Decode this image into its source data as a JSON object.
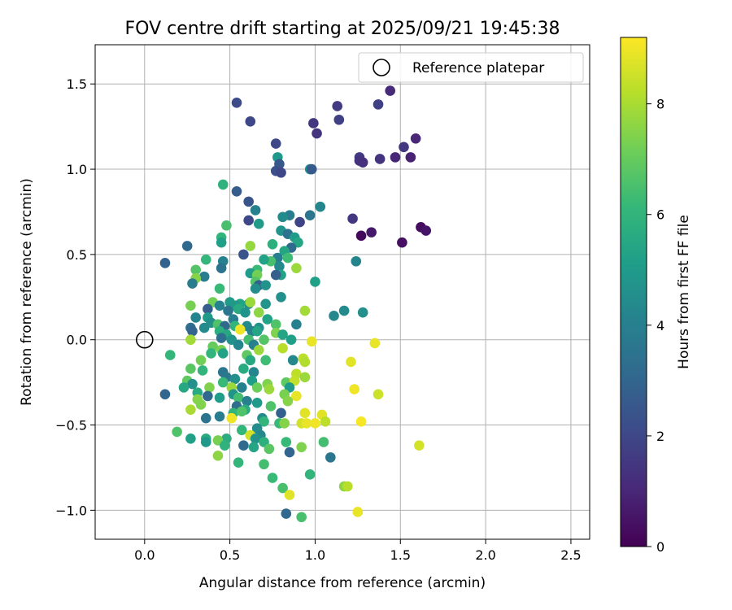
{
  "chart_data": {
    "type": "scatter",
    "title": "FOV centre drift starting at 2025/09/21 19:45:38",
    "xlabel": "Angular distance from reference (arcmin)",
    "ylabel": "Rotation from reference (arcmin)",
    "xlim": [
      -0.29,
      2.61
    ],
    "ylim": [
      -1.17,
      1.73
    ],
    "xticks": [
      "0.0",
      "0.5",
      "1.0",
      "1.5",
      "2.0",
      "2.5"
    ],
    "xtick_values": [
      0.0,
      0.5,
      1.0,
      1.5,
      2.0,
      2.5
    ],
    "yticks": [
      "−1.0",
      "−0.5",
      "0.0",
      "0.5",
      "1.0",
      "1.5"
    ],
    "ytick_values": [
      -1.0,
      -0.5,
      0.0,
      0.5,
      1.0,
      1.5
    ],
    "grid": true,
    "legend": {
      "position": "top-right",
      "label": "Reference platepar"
    },
    "reference_point": {
      "x": 0.0,
      "y": 0.0
    },
    "colorbar": {
      "label": "Hours from first FF file",
      "range": [
        0,
        9.2
      ],
      "ticks": [
        "0",
        "2",
        "4",
        "6",
        "8"
      ],
      "tick_values": [
        0,
        2,
        4,
        6,
        8
      ],
      "colormap": [
        "#440154",
        "#482878",
        "#3e4989",
        "#31688e",
        "#26828e",
        "#1f9e89",
        "#35b779",
        "#6ece58",
        "#b5de2b",
        "#fde725"
      ]
    },
    "points": [
      {
        "x": 1.44,
        "y": 1.46,
        "h": 1.1
      },
      {
        "x": 1.13,
        "y": 1.37,
        "h": 1.6
      },
      {
        "x": 1.37,
        "y": 1.38,
        "h": 1.8
      },
      {
        "x": 0.54,
        "y": 1.39,
        "h": 2.1
      },
      {
        "x": 0.62,
        "y": 1.28,
        "h": 2.0
      },
      {
        "x": 1.14,
        "y": 1.29,
        "h": 1.8
      },
      {
        "x": 0.99,
        "y": 1.27,
        "h": 1.5
      },
      {
        "x": 1.01,
        "y": 1.21,
        "h": 1.4
      },
      {
        "x": 1.59,
        "y": 1.18,
        "h": 1.0
      },
      {
        "x": 0.77,
        "y": 1.15,
        "h": 2.0
      },
      {
        "x": 1.52,
        "y": 1.13,
        "h": 1.5
      },
      {
        "x": 1.47,
        "y": 1.07,
        "h": 1.0
      },
      {
        "x": 1.56,
        "y": 1.07,
        "h": 0.9
      },
      {
        "x": 1.26,
        "y": 1.07,
        "h": 1.6
      },
      {
        "x": 0.78,
        "y": 1.07,
        "h": 4.9
      },
      {
        "x": 1.38,
        "y": 1.06,
        "h": 1.4
      },
      {
        "x": 1.26,
        "y": 1.05,
        "h": 1.4
      },
      {
        "x": 1.28,
        "y": 1.04,
        "h": 1.3
      },
      {
        "x": 0.79,
        "y": 1.03,
        "h": 2.5
      },
      {
        "x": 0.77,
        "y": 0.99,
        "h": 2.3
      },
      {
        "x": 0.8,
        "y": 0.98,
        "h": 2.0
      },
      {
        "x": 0.97,
        "y": 1.0,
        "h": 4.6
      },
      {
        "x": 0.98,
        "y": 1.0,
        "h": 2.6
      },
      {
        "x": 0.46,
        "y": 0.91,
        "h": 5.9
      },
      {
        "x": 0.54,
        "y": 0.87,
        "h": 2.7
      },
      {
        "x": 0.61,
        "y": 0.81,
        "h": 2.4
      },
      {
        "x": 1.03,
        "y": 0.78,
        "h": 4.2
      },
      {
        "x": 0.65,
        "y": 0.76,
        "h": 4.0
      },
      {
        "x": 1.22,
        "y": 0.71,
        "h": 1.5
      },
      {
        "x": 0.85,
        "y": 0.73,
        "h": 3.9
      },
      {
        "x": 0.97,
        "y": 0.73,
        "h": 3.6
      },
      {
        "x": 0.81,
        "y": 0.72,
        "h": 4.4
      },
      {
        "x": 0.61,
        "y": 0.7,
        "h": 2.0
      },
      {
        "x": 0.91,
        "y": 0.69,
        "h": 1.9
      },
      {
        "x": 0.67,
        "y": 0.68,
        "h": 5.0
      },
      {
        "x": 0.48,
        "y": 0.67,
        "h": 6.5
      },
      {
        "x": 1.62,
        "y": 0.66,
        "h": 0.3
      },
      {
        "x": 1.65,
        "y": 0.64,
        "h": 0.5
      },
      {
        "x": 0.8,
        "y": 0.64,
        "h": 4.8
      },
      {
        "x": 1.33,
        "y": 0.63,
        "h": 0.6
      },
      {
        "x": 1.27,
        "y": 0.61,
        "h": 0.2
      },
      {
        "x": 0.84,
        "y": 0.62,
        "h": 3.5
      },
      {
        "x": 0.88,
        "y": 0.6,
        "h": 5.0
      },
      {
        "x": 0.45,
        "y": 0.6,
        "h": 6.0
      },
      {
        "x": 0.45,
        "y": 0.57,
        "h": 5.2
      },
      {
        "x": 0.9,
        "y": 0.57,
        "h": 5.4
      },
      {
        "x": 0.75,
        "y": 0.56,
        "h": 5.8
      },
      {
        "x": 0.62,
        "y": 0.55,
        "h": 7.7
      },
      {
        "x": 0.25,
        "y": 0.55,
        "h": 3.1
      },
      {
        "x": 0.86,
        "y": 0.54,
        "h": 3.2
      },
      {
        "x": 0.82,
        "y": 0.52,
        "h": 5.4
      },
      {
        "x": 0.58,
        "y": 0.5,
        "h": 2.4
      },
      {
        "x": 1.51,
        "y": 0.57,
        "h": 0.4
      },
      {
        "x": 0.78,
        "y": 0.48,
        "h": 3.9
      },
      {
        "x": 0.84,
        "y": 0.48,
        "h": 6.3
      },
      {
        "x": 0.74,
        "y": 0.46,
        "h": 6.5
      },
      {
        "x": 0.7,
        "y": 0.47,
        "h": 5.3
      },
      {
        "x": 0.12,
        "y": 0.45,
        "h": 2.9
      },
      {
        "x": 0.36,
        "y": 0.47,
        "h": 6.1
      },
      {
        "x": 0.46,
        "y": 0.46,
        "h": 4.1
      },
      {
        "x": 0.79,
        "y": 0.43,
        "h": 4.3
      },
      {
        "x": 1.24,
        "y": 0.46,
        "h": 4.2
      },
      {
        "x": 0.45,
        "y": 0.42,
        "h": 3.5
      },
      {
        "x": 0.3,
        "y": 0.41,
        "h": 6.7
      },
      {
        "x": 0.66,
        "y": 0.41,
        "h": 6.2
      },
      {
        "x": 0.89,
        "y": 0.42,
        "h": 7.8
      },
      {
        "x": 0.62,
        "y": 0.39,
        "h": 5.0
      },
      {
        "x": 0.66,
        "y": 0.38,
        "h": 7.2
      },
      {
        "x": 0.8,
        "y": 0.38,
        "h": 5.3
      },
      {
        "x": 0.77,
        "y": 0.38,
        "h": 2.8
      },
      {
        "x": 0.35,
        "y": 0.37,
        "h": 3.9
      },
      {
        "x": 0.3,
        "y": 0.36,
        "h": 7.5
      },
      {
        "x": 0.28,
        "y": 0.33,
        "h": 3.8
      },
      {
        "x": 0.65,
        "y": 0.34,
        "h": 6.7
      },
      {
        "x": 0.67,
        "y": 0.32,
        "h": 2.8
      },
      {
        "x": 0.71,
        "y": 0.32,
        "h": 4.7
      },
      {
        "x": 1.0,
        "y": 0.34,
        "h": 5.2
      },
      {
        "x": 0.44,
        "y": 0.3,
        "h": 6.2
      },
      {
        "x": 0.65,
        "y": 0.3,
        "h": 4.5
      },
      {
        "x": 0.8,
        "y": 0.25,
        "h": 4.6
      },
      {
        "x": 0.61,
        "y": 0.21,
        "h": 4.3
      },
      {
        "x": 0.56,
        "y": 0.21,
        "h": 5.3
      },
      {
        "x": 0.5,
        "y": 0.22,
        "h": 5.0
      },
      {
        "x": 0.53,
        "y": 0.2,
        "h": 4.9
      },
      {
        "x": 0.27,
        "y": 0.2,
        "h": 7.3
      },
      {
        "x": 0.4,
        "y": 0.22,
        "h": 7.2
      },
      {
        "x": 0.62,
        "y": 0.22,
        "h": 7.8
      },
      {
        "x": 0.71,
        "y": 0.21,
        "h": 4.8
      },
      {
        "x": 0.44,
        "y": 0.2,
        "h": 4.1
      },
      {
        "x": 0.37,
        "y": 0.18,
        "h": 2.7
      },
      {
        "x": 0.55,
        "y": 0.18,
        "h": 5.6
      },
      {
        "x": 0.49,
        "y": 0.17,
        "h": 3.6
      },
      {
        "x": 0.59,
        "y": 0.16,
        "h": 4.7
      },
      {
        "x": 0.67,
        "y": 0.16,
        "h": 7.6
      },
      {
        "x": 0.94,
        "y": 0.17,
        "h": 7.9
      },
      {
        "x": 1.17,
        "y": 0.17,
        "h": 4.4
      },
      {
        "x": 1.28,
        "y": 0.16,
        "h": 4.6
      },
      {
        "x": 1.11,
        "y": 0.14,
        "h": 4.3
      },
      {
        "x": 0.3,
        "y": 0.13,
        "h": 4.2
      },
      {
        "x": 0.52,
        "y": 0.12,
        "h": 3.9
      },
      {
        "x": 0.37,
        "y": 0.13,
        "h": 5.0
      },
      {
        "x": 0.72,
        "y": 0.12,
        "h": 5.3
      },
      {
        "x": 0.39,
        "y": 0.1,
        "h": 4.6
      },
      {
        "x": 0.43,
        "y": 0.09,
        "h": 6.6
      },
      {
        "x": 0.47,
        "y": 0.08,
        "h": 3.2
      },
      {
        "x": 0.53,
        "y": 0.08,
        "h": 6.0
      },
      {
        "x": 0.6,
        "y": 0.08,
        "h": 4.4
      },
      {
        "x": 0.67,
        "y": 0.07,
        "h": 4.7
      },
      {
        "x": 0.77,
        "y": 0.09,
        "h": 6.6
      },
      {
        "x": 0.89,
        "y": 0.09,
        "h": 4.0
      },
      {
        "x": 0.27,
        "y": 0.07,
        "h": 3.3
      },
      {
        "x": 0.35,
        "y": 0.07,
        "h": 4.4
      },
      {
        "x": 0.28,
        "y": 0.05,
        "h": 3.0
      },
      {
        "x": 0.44,
        "y": 0.05,
        "h": 5.8
      },
      {
        "x": 0.56,
        "y": 0.06,
        "h": 9.0
      },
      {
        "x": 0.63,
        "y": 0.05,
        "h": 4.1
      },
      {
        "x": 0.66,
        "y": 0.05,
        "h": 5.4
      },
      {
        "x": 0.48,
        "y": 0.03,
        "h": 5.5
      },
      {
        "x": 0.77,
        "y": 0.04,
        "h": 7.4
      },
      {
        "x": 0.81,
        "y": 0.03,
        "h": 5.4
      },
      {
        "x": 0.45,
        "y": 0.01,
        "h": 3.3
      },
      {
        "x": 0.51,
        "y": 0.0,
        "h": 4.7
      },
      {
        "x": 0.61,
        "y": 0.0,
        "h": 6.4
      },
      {
        "x": 0.27,
        "y": 0.0,
        "h": 7.9
      },
      {
        "x": 0.7,
        "y": 0.0,
        "h": 6.7
      },
      {
        "x": 0.86,
        "y": 0.0,
        "h": 5.2
      },
      {
        "x": 0.98,
        "y": -0.01,
        "h": 8.9
      },
      {
        "x": 0.4,
        "y": -0.04,
        "h": 7.0
      },
      {
        "x": 0.55,
        "y": -0.03,
        "h": 4.2
      },
      {
        "x": 0.64,
        "y": -0.03,
        "h": 4.0
      },
      {
        "x": 0.45,
        "y": -0.06,
        "h": 7.3
      },
      {
        "x": 0.67,
        "y": -0.06,
        "h": 7.8
      },
      {
        "x": 0.81,
        "y": -0.05,
        "h": 8.2
      },
      {
        "x": 0.39,
        "y": -0.08,
        "h": 6.0
      },
      {
        "x": 0.46,
        "y": -0.08,
        "h": 5.3
      },
      {
        "x": 0.6,
        "y": -0.09,
        "h": 6.9
      },
      {
        "x": 0.15,
        "y": -0.09,
        "h": 6.1
      },
      {
        "x": 0.62,
        "y": -0.12,
        "h": 5.5
      },
      {
        "x": 0.71,
        "y": -0.12,
        "h": 6.3
      },
      {
        "x": 0.33,
        "y": -0.12,
        "h": 7.2
      },
      {
        "x": 0.87,
        "y": -0.12,
        "h": 4.3
      },
      {
        "x": 0.93,
        "y": -0.11,
        "h": 8.3
      },
      {
        "x": 0.94,
        "y": -0.13,
        "h": 8.1
      },
      {
        "x": 1.21,
        "y": -0.13,
        "h": 8.8
      },
      {
        "x": 1.35,
        "y": -0.02,
        "h": 8.9
      },
      {
        "x": 0.27,
        "y": -0.17,
        "h": 6.8
      },
      {
        "x": 0.34,
        "y": -0.18,
        "h": 6.0
      },
      {
        "x": 0.46,
        "y": -0.19,
        "h": 3.6
      },
      {
        "x": 0.58,
        "y": -0.17,
        "h": 5.6
      },
      {
        "x": 0.64,
        "y": -0.19,
        "h": 4.2
      },
      {
        "x": 0.48,
        "y": -0.22,
        "h": 3.7
      },
      {
        "x": 0.53,
        "y": -0.23,
        "h": 4.6
      },
      {
        "x": 0.89,
        "y": -0.2,
        "h": 8.3
      },
      {
        "x": 0.94,
        "y": -0.22,
        "h": 7.8
      },
      {
        "x": 0.63,
        "y": -0.24,
        "h": 5.1
      },
      {
        "x": 0.25,
        "y": -0.24,
        "h": 6.9
      },
      {
        "x": 0.46,
        "y": -0.25,
        "h": 6.2
      },
      {
        "x": 0.83,
        "y": -0.25,
        "h": 6.9
      },
      {
        "x": 0.88,
        "y": -0.24,
        "h": 8.4
      },
      {
        "x": 0.28,
        "y": -0.26,
        "h": 4.6
      },
      {
        "x": 0.51,
        "y": -0.28,
        "h": 7.8
      },
      {
        "x": 0.72,
        "y": -0.26,
        "h": 7.4
      },
      {
        "x": 0.57,
        "y": -0.28,
        "h": 4.0
      },
      {
        "x": 0.23,
        "y": -0.28,
        "h": 5.5
      },
      {
        "x": 0.38,
        "y": -0.28,
        "h": 7.4
      },
      {
        "x": 0.66,
        "y": -0.28,
        "h": 7.1
      },
      {
        "x": 0.85,
        "y": -0.28,
        "h": 5.0
      },
      {
        "x": 1.23,
        "y": -0.29,
        "h": 9.0
      },
      {
        "x": 0.31,
        "y": -0.31,
        "h": 5.6
      },
      {
        "x": 0.73,
        "y": -0.29,
        "h": 7.8
      },
      {
        "x": 0.12,
        "y": -0.32,
        "h": 3.0
      },
      {
        "x": 0.52,
        "y": -0.32,
        "h": 4.8
      },
      {
        "x": 0.82,
        "y": -0.32,
        "h": 7.3
      },
      {
        "x": 0.89,
        "y": -0.33,
        "h": 8.9
      },
      {
        "x": 0.37,
        "y": -0.33,
        "h": 3.1
      },
      {
        "x": 0.44,
        "y": -0.34,
        "h": 5.1
      },
      {
        "x": 0.55,
        "y": -0.34,
        "h": 6.4
      },
      {
        "x": 0.31,
        "y": -0.35,
        "h": 7.5
      },
      {
        "x": 1.37,
        "y": -0.32,
        "h": 8.5
      },
      {
        "x": 0.6,
        "y": -0.36,
        "h": 4.0
      },
      {
        "x": 0.66,
        "y": -0.37,
        "h": 5.0
      },
      {
        "x": 0.84,
        "y": -0.36,
        "h": 7.5
      },
      {
        "x": 0.33,
        "y": -0.38,
        "h": 7.4
      },
      {
        "x": 0.74,
        "y": -0.39,
        "h": 6.6
      },
      {
        "x": 0.54,
        "y": -0.39,
        "h": 3.3
      },
      {
        "x": 0.59,
        "y": -0.41,
        "h": 5.6
      },
      {
        "x": 0.27,
        "y": -0.41,
        "h": 8.0
      },
      {
        "x": 0.52,
        "y": -0.43,
        "h": 6.0
      },
      {
        "x": 0.57,
        "y": -0.42,
        "h": 6.6
      },
      {
        "x": 0.8,
        "y": -0.43,
        "h": 2.8
      },
      {
        "x": 0.94,
        "y": -0.43,
        "h": 8.8
      },
      {
        "x": 0.36,
        "y": -0.46,
        "h": 3.5
      },
      {
        "x": 0.44,
        "y": -0.45,
        "h": 3.8
      },
      {
        "x": 0.51,
        "y": -0.46,
        "h": 9.0
      },
      {
        "x": 0.69,
        "y": -0.46,
        "h": 4.4
      },
      {
        "x": 0.7,
        "y": -0.48,
        "h": 6.0
      },
      {
        "x": 0.79,
        "y": -0.49,
        "h": 6.2
      },
      {
        "x": 0.82,
        "y": -0.49,
        "h": 7.5
      },
      {
        "x": 0.92,
        "y": -0.49,
        "h": 8.6
      },
      {
        "x": 0.95,
        "y": -0.49,
        "h": 8.9
      },
      {
        "x": 1.0,
        "y": -0.49,
        "h": 9.0
      },
      {
        "x": 1.04,
        "y": -0.44,
        "h": 8.8
      },
      {
        "x": 1.06,
        "y": -0.48,
        "h": 8.3
      },
      {
        "x": 1.27,
        "y": -0.48,
        "h": 9.1
      },
      {
        "x": 0.57,
        "y": -0.53,
        "h": 6.1
      },
      {
        "x": 0.66,
        "y": -0.52,
        "h": 4.5
      },
      {
        "x": 0.62,
        "y": -0.56,
        "h": 8.6
      },
      {
        "x": 0.68,
        "y": -0.56,
        "h": 4.3
      },
      {
        "x": 0.19,
        "y": -0.54,
        "h": 6.6
      },
      {
        "x": 0.27,
        "y": -0.58,
        "h": 5.2
      },
      {
        "x": 0.36,
        "y": -0.58,
        "h": 5.6
      },
      {
        "x": 0.48,
        "y": -0.58,
        "h": 5.7
      },
      {
        "x": 0.65,
        "y": -0.58,
        "h": 4.7
      },
      {
        "x": 0.83,
        "y": -0.6,
        "h": 6.2
      },
      {
        "x": 0.43,
        "y": -0.59,
        "h": 7.3
      },
      {
        "x": 0.36,
        "y": -0.6,
        "h": 4.9
      },
      {
        "x": 0.47,
        "y": -0.62,
        "h": 5.9
      },
      {
        "x": 0.58,
        "y": -0.62,
        "h": 3.2
      },
      {
        "x": 0.64,
        "y": -0.63,
        "h": 5.4
      },
      {
        "x": 0.7,
        "y": -0.6,
        "h": 5.8
      },
      {
        "x": 0.73,
        "y": -0.64,
        "h": 6.8
      },
      {
        "x": 0.85,
        "y": -0.66,
        "h": 3.0
      },
      {
        "x": 0.92,
        "y": -0.63,
        "h": 7.4
      },
      {
        "x": 1.05,
        "y": -0.6,
        "h": 6.4
      },
      {
        "x": 1.61,
        "y": -0.62,
        "h": 8.6
      },
      {
        "x": 0.43,
        "y": -0.68,
        "h": 7.6
      },
      {
        "x": 0.55,
        "y": -0.72,
        "h": 6.1
      },
      {
        "x": 0.7,
        "y": -0.73,
        "h": 6.4
      },
      {
        "x": 1.09,
        "y": -0.69,
        "h": 3.6
      },
      {
        "x": 0.75,
        "y": -0.81,
        "h": 6.2
      },
      {
        "x": 0.97,
        "y": -0.79,
        "h": 6.0
      },
      {
        "x": 0.81,
        "y": -0.87,
        "h": 6.5
      },
      {
        "x": 1.17,
        "y": -0.86,
        "h": 7.6
      },
      {
        "x": 1.19,
        "y": -0.86,
        "h": 8.2
      },
      {
        "x": 0.85,
        "y": -0.91,
        "h": 8.8
      },
      {
        "x": 0.83,
        "y": -1.02,
        "h": 3.1
      },
      {
        "x": 0.92,
        "y": -1.04,
        "h": 6.5
      },
      {
        "x": 1.25,
        "y": -1.01,
        "h": 8.9
      }
    ]
  }
}
